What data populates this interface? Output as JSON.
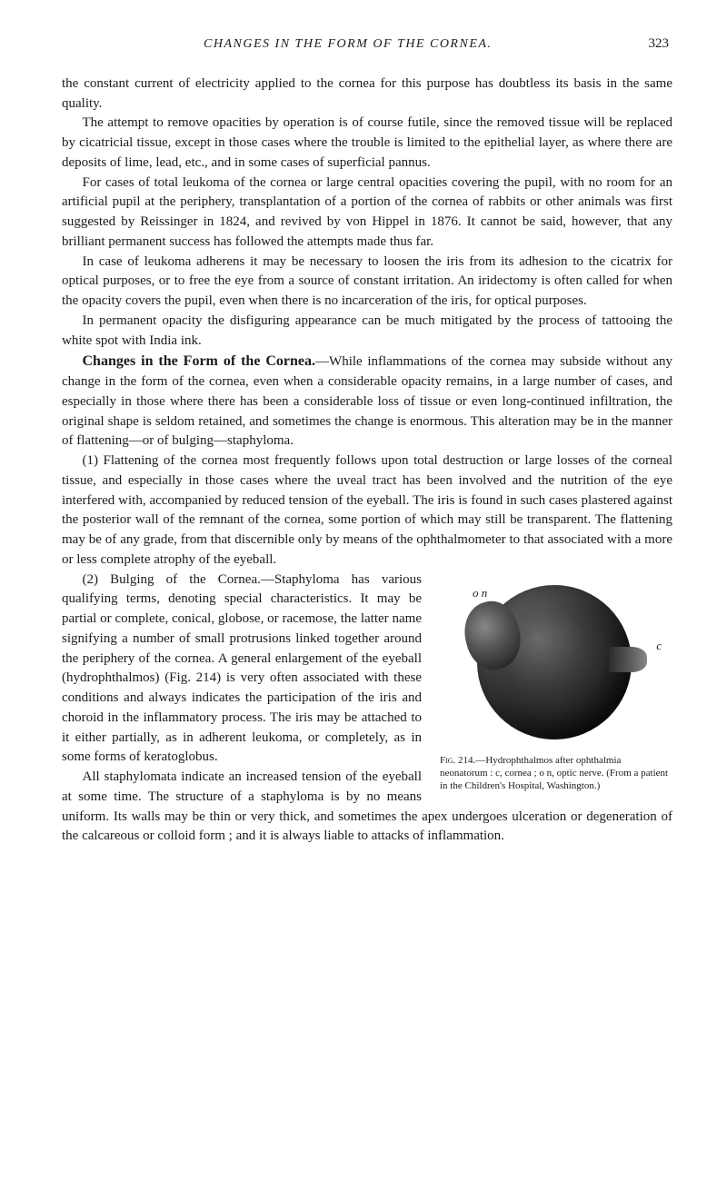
{
  "header": {
    "running_title": "CHANGES IN THE FORM OF THE CORNEA.",
    "page_number": "323"
  },
  "paragraphs": {
    "p1": "the constant current of electricity applied to the cornea for this purpose has doubtless its basis in the same quality.",
    "p2": "The attempt to remove opacities by operation is of course futile, since the removed tissue will be replaced by cicatricial tissue, except in those cases where the trouble is limited to the epithelial layer, as where there are deposits of lime, lead, etc., and in some cases of superficial pannus.",
    "p3": "For cases of total leukoma of the cornea or large central opacities covering the pupil, with no room for an artificial pupil at the periphery, transplanta­tion of a portion of the cornea of rabbits or other animals was first suggested by Reissinger in 1824, and revived by von Hippel in 1876. It cannot be said, however, that any brilliant permanent success has followed the attempts made thus far.",
    "p4": "In case of leukoma adherens it may be necessary to loosen the iris from its adhesion to the cicatrix for optical purposes, or to free the eye from a source of constant irritation. An iridectomy is often called for when the opacity covers the pupil, even when there is no incarceration of the iris, for optical purposes.",
    "p5": "In permanent opacity the disfiguring appearance can be much mitigated by the process of tattooing the white spot with India ink.",
    "p6_heading": "Changes in the Form of the Cornea.",
    "p6": "—While inflammations of the cornea may subside without any change in the form of the cornea, even when a considerable opacity remains, in a large number of cases, and especially in those where there has been a considerable loss of tissue or even long-continued infiltration, the original shape is seldom retained, and sometimes the change is enormous. This alteration may be in the manner of flattening—or of bulging—staphyloma.",
    "p7": "(1) Flattening of the cornea most frequently follows upon total destruction or large losses of the corneal tissue, and especially in those cases where the uveal tract has been involved and the nutrition of the eye interfered with, accompanied by reduced tension of the eyeball. The iris is found in such cases plastered against the posterior wall of the remnant of the cornea, some portion of which may still be transparent. The flattening may be of any grade, from that discernible only by means of the ophthalmometer to that associated with a more or less complete atrophy of the eyeball.",
    "p8": "(2) Bulging of the Cornea.—Staphyloma has various qualifying terms, denoting special characteristics. It may be partial or complete, conical, globose, or racemose, the latter name sig­nifying a number of small protrusions linked together around the periphery of the cornea. A general enlargement of the eyeball (hydrophthalmos) (Fig. 214) is very often associated with these condi­tions and always indicates the participa­tion of the iris and choroid in the inflam­matory process. The iris may be attached to it either partially, as in adherent leu­koma, or completely, as in some forms of keratoglobus.",
    "p9": "All staphylomata indicate an in­creased tension of the eyeball at some time. The structure of a staphyloma is by no means uniform. Its walls may be thin or very thick, and some­times the apex undergoes ulceration or degeneration of the calcareous or col­loid form ; and it is always liable to attacks of inflammation."
  },
  "figure": {
    "label_on": "o n",
    "label_c": "c",
    "caption_lead": "Fig. 214.",
    "caption_text": "—Hydrophthalmos after ophthal­mia neonatorum : c, cornea ; o n, optic nerve. (From a patient in the Children's Hospital, Washington.)"
  }
}
